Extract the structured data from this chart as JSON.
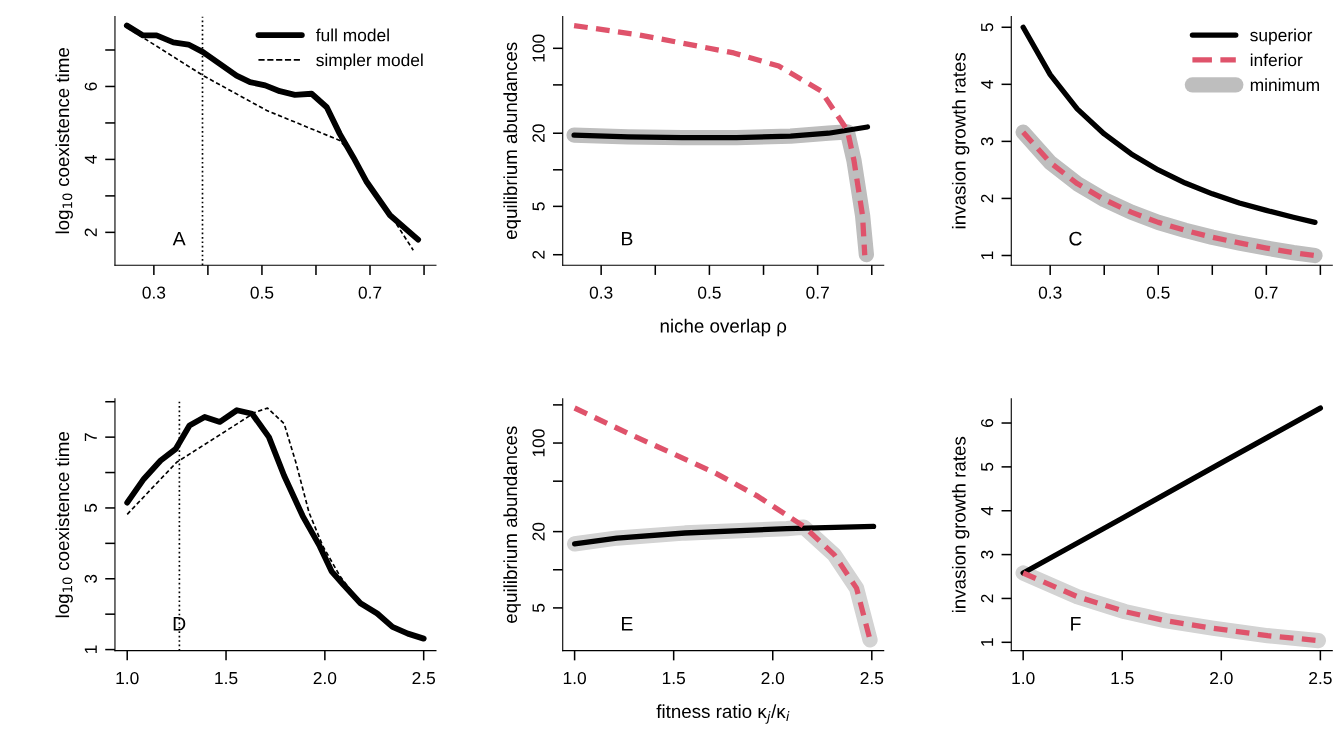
{
  "chart_data": [
    {
      "type": "line",
      "ylabel": "log$_{10}$ coexistence time",
      "xlim": [
        0.228,
        0.822
      ],
      "ylim": [
        1.1,
        7.92
      ],
      "xticks": [
        0.3,
        {
          "value": 0.4,
          "label": null
        },
        0.5,
        {
          "value": 0.6,
          "label": null
        },
        0.7,
        {
          "value": 0.8,
          "label": null
        }
      ],
      "yticks": [
        2,
        {
          "value": 3,
          "label": null
        },
        4,
        {
          "value": 5,
          "label": null
        },
        6,
        {
          "value": 7,
          "label": null
        }
      ],
      "legend": "top right",
      "grid": false,
      "annotations": [
        "A"
      ],
      "ref_lines": [
        {
          "axis": "x",
          "value": 0.39,
          "color": "#000000",
          "line_style": "dotted"
        }
      ],
      "series": [
        {
          "name": "full model",
          "color": "#000000",
          "line_style": "solid",
          "x": [
            0.25,
            0.28,
            0.305,
            0.336,
            0.364,
            0.391,
            0.422,
            0.453,
            0.478,
            0.506,
            0.533,
            0.561,
            0.592,
            0.62,
            0.644,
            0.669,
            0.694,
            0.737,
            0.789
          ],
          "values": [
            7.67,
            7.4,
            7.4,
            7.21,
            7.15,
            6.94,
            6.62,
            6.3,
            6.12,
            6.03,
            5.87,
            5.77,
            5.8,
            5.43,
            4.7,
            4.06,
            3.38,
            2.47,
            1.8
          ]
        },
        {
          "name": "simpler model",
          "color": "#000000",
          "line_style": "dashed",
          "x": [
            0.25,
            0.391,
            0.509,
            0.644,
            0.669,
            0.694,
            0.737,
            0.78
          ],
          "values": [
            7.62,
            6.3,
            5.34,
            4.52,
            4.1,
            3.4,
            2.5,
            1.51
          ]
        }
      ]
    },
    {
      "type": "line",
      "ylabel": "equilibrium abundances",
      "xlabel": "niche overlap ρ",
      "log": "y",
      "xlim": [
        0.229,
        0.822
      ],
      "ylim": [
        1.64,
        183
      ],
      "xticks": [
        0.3,
        {
          "value": 0.4,
          "label": null
        },
        0.5,
        {
          "value": 0.6,
          "label": null
        },
        0.7,
        {
          "value": 0.8,
          "label": null
        }
      ],
      "yticks": [
        2,
        5,
        {
          "value": 10,
          "label": null
        },
        20,
        {
          "value": 50,
          "label": null
        },
        100
      ],
      "grid": false,
      "annotations": [
        "B"
      ],
      "series": [
        {
          "color": "#000000",
          "line_style": "solid",
          "x": [
            0.25,
            0.35,
            0.45,
            0.55,
            0.65,
            0.72,
            0.792
          ],
          "values": [
            19.3,
            18.7,
            18.4,
            18.4,
            18.9,
            20,
            22.5
          ]
        },
        {
          "color": "#df536b",
          "line_style": "dashed",
          "x": [
            0.25,
            0.37,
            0.545,
            0.628,
            0.706,
            0.755,
            0.767,
            0.783,
            0.787
          ],
          "values": [
            154,
            129,
            91.6,
            71.4,
            44.7,
            21.1,
            12,
            4.18,
            1.98
          ]
        },
        {
          "color": "#bebebe",
          "line_style": "solid",
          "x": [
            0.25,
            0.35,
            0.45,
            0.55,
            0.65,
            0.72,
            0.755,
            0.767,
            0.783,
            0.79
          ],
          "values": [
            19.3,
            18.7,
            18.4,
            18.4,
            18.9,
            20,
            20.5,
            12,
            4.2,
            2
          ]
        }
      ]
    },
    {
      "type": "line",
      "ylabel": "invasion growth rates",
      "xlim": [
        0.228,
        0.822
      ],
      "ylim": [
        0.83,
        5.19
      ],
      "xticks": [
        0.3,
        {
          "value": 0.4,
          "label": null
        },
        0.5,
        {
          "value": 0.6,
          "label": null
        },
        0.7,
        {
          "value": 0.8,
          "label": null
        }
      ],
      "yticks": [
        1,
        2,
        3,
        4,
        5
      ],
      "legend": "top right",
      "grid": false,
      "annotations": [
        "C"
      ],
      "series": [
        {
          "name": "superior",
          "color": "#000000",
          "line_style": "solid",
          "x": [
            0.25,
            0.3,
            0.35,
            0.4,
            0.45,
            0.5,
            0.55,
            0.6,
            0.65,
            0.7,
            0.75,
            0.79
          ],
          "values": [
            5.0,
            4.17,
            3.57,
            3.13,
            2.78,
            2.5,
            2.27,
            2.08,
            1.92,
            1.79,
            1.67,
            1.58
          ]
        },
        {
          "name": "inferior",
          "color": "#df536b",
          "line_style": "dashed",
          "x": [
            0.25,
            0.3,
            0.35,
            0.4,
            0.45,
            0.5,
            0.55,
            0.6,
            0.65,
            0.7,
            0.75,
            0.79
          ],
          "values": [
            3.16,
            2.63,
            2.26,
            1.98,
            1.76,
            1.58,
            1.44,
            1.32,
            1.22,
            1.13,
            1.05,
            1.0
          ]
        },
        {
          "name": "minimum",
          "color": "#bebebe",
          "line_style": "solid",
          "x": [
            0.25,
            0.3,
            0.35,
            0.4,
            0.45,
            0.5,
            0.55,
            0.6,
            0.65,
            0.7,
            0.75,
            0.79
          ],
          "values": [
            3.16,
            2.63,
            2.26,
            1.98,
            1.76,
            1.58,
            1.44,
            1.32,
            1.22,
            1.13,
            1.05,
            1.0
          ]
        }
      ]
    },
    {
      "type": "line",
      "ylabel": "log$_{10}$ coexistence time",
      "xlim": [
        0.938,
        2.562
      ],
      "ylim": [
        0.97,
        8.08
      ],
      "xticks": [
        {
          "value": 1,
          "label": "1.0"
        },
        1.5,
        {
          "value": 2,
          "label": "2.0"
        },
        2.5
      ],
      "yticks": [
        1,
        {
          "value": 2,
          "label": null
        },
        3,
        {
          "value": 4,
          "label": null
        },
        5,
        {
          "value": 6,
          "label": null
        },
        7,
        {
          "value": 8,
          "label": null
        }
      ],
      "grid": false,
      "annotations": [
        "D"
      ],
      "ref_lines": [
        {
          "axis": "x",
          "value": 1.264,
          "color": "#000000",
          "line_style": "dotted"
        }
      ],
      "series": [
        {
          "color": "#000000",
          "line_style": "solid",
          "x": [
            1.0,
            1.084,
            1.169,
            1.246,
            1.315,
            1.392,
            1.469,
            1.555,
            1.632,
            1.717,
            1.794,
            1.888,
            1.974,
            2.034,
            2.094,
            2.18,
            2.265,
            2.342,
            2.42,
            2.5
          ],
          "values": [
            5.15,
            5.82,
            6.34,
            6.67,
            7.33,
            7.57,
            7.43,
            7.76,
            7.66,
            7.0,
            5.91,
            4.77,
            3.92,
            3.21,
            2.83,
            2.31,
            2.02,
            1.64,
            1.45,
            1.31
          ]
        },
        {
          "color": "#000000",
          "line_style": "dashed",
          "x": [
            1.0,
            1.25,
            1.65,
            1.71,
            1.794,
            1.853,
            1.92,
            1.99,
            2.077,
            2.18,
            2.342,
            2.5
          ],
          "values": [
            4.82,
            6.29,
            7.71,
            7.82,
            7.38,
            6.29,
            4.87,
            3.92,
            3.07,
            2.31,
            1.64,
            1.31
          ]
        }
      ]
    },
    {
      "type": "line",
      "ylabel": "equilibrium abundances",
      "xlabel": "fitness ratio κ$_{j}$/κ$_{i}$",
      "log": "y",
      "xlim": [
        0.94,
        2.56
      ],
      "ylim": [
        2.3,
        223
      ],
      "xticks": [
        {
          "value": 1,
          "label": "1.0"
        },
        1.5,
        {
          "value": 2,
          "label": "2.0"
        },
        2.5
      ],
      "yticks": [
        5,
        {
          "value": 10,
          "label": null
        },
        20,
        {
          "value": 50,
          "label": null
        },
        100,
        {
          "value": 200,
          "label": null
        }
      ],
      "grid": false,
      "annotations": [
        "E"
      ],
      "series": [
        {
          "color": "#000000",
          "line_style": "solid",
          "x": [
            1.0,
            1.214,
            1.557,
            2.071,
            2.509
          ],
          "values": [
            16.0,
            17.8,
            19.5,
            21.1,
            22.0
          ]
        },
        {
          "color": "#df536b",
          "line_style": "dashed",
          "x": [
            1.0,
            1.266,
            1.489,
            1.711,
            1.926,
            2.157,
            2.311,
            2.423,
            2.491
          ],
          "values": [
            189,
            120,
            83.4,
            57.9,
            37.9,
            22.0,
            13.1,
            7.16,
            2.8
          ]
        },
        {
          "color": "#d3d3d3",
          "line_style": "solid",
          "x": [
            1.0,
            1.214,
            1.557,
            2.071,
            2.157,
            2.311,
            2.423,
            2.491
          ],
          "values": [
            16.0,
            17.8,
            19.5,
            21.1,
            21.7,
            13.1,
            7.16,
            2.8
          ]
        }
      ]
    },
    {
      "type": "line",
      "ylabel": "invasion growth rates",
      "xlim": [
        0.94,
        2.56
      ],
      "ylim": [
        0.81,
        6.55
      ],
      "xticks": [
        {
          "value": 1,
          "label": "1.0"
        },
        1.5,
        {
          "value": 2,
          "label": "2.0"
        },
        2.5
      ],
      "yticks": [
        1,
        2,
        3,
        4,
        5,
        6
      ],
      "grid": false,
      "annotations": [
        "F"
      ],
      "series": [
        {
          "color": "#000000",
          "line_style": "solid",
          "x": [
            1.0,
            1.5,
            2.0,
            2.5
          ],
          "values": [
            2.58,
            3.83,
            5.09,
            6.34
          ]
        },
        {
          "color": "#df536b",
          "line_style": "dashed",
          "x": [
            1.0,
            1.274,
            1.514,
            1.72,
            1.96,
            2.234,
            2.49
          ],
          "values": [
            2.58,
            2.04,
            1.7,
            1.49,
            1.32,
            1.15,
            1.04
          ]
        },
        {
          "color": "#d3d3d3",
          "line_style": "solid",
          "x": [
            1.0,
            1.274,
            1.514,
            1.72,
            1.96,
            2.234,
            2.49
          ],
          "values": [
            2.58,
            2.04,
            1.7,
            1.49,
            1.32,
            1.15,
            1.04
          ]
        }
      ]
    }
  ]
}
